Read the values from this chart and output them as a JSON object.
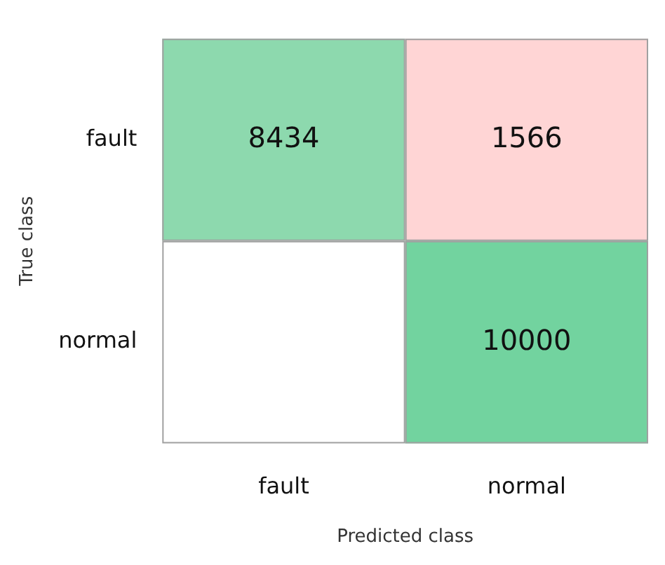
{
  "chart_data": {
    "type": "heatmap",
    "xlabel": "Predicted class",
    "ylabel": "True class",
    "categories": [
      "fault",
      "normal"
    ],
    "y_categories": [
      "fault",
      "normal"
    ],
    "cells": [
      [
        8434,
        1566
      ],
      [
        null,
        10000
      ]
    ],
    "data_labels": true,
    "colors": [
      "#8dd9ae",
      "#ffd5d5",
      "#ffffff",
      "#72d39f"
    ]
  }
}
